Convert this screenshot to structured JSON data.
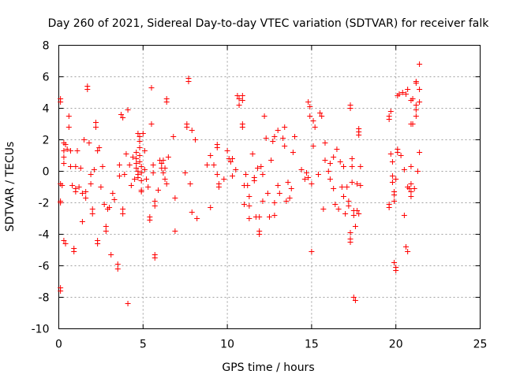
{
  "chart_data": {
    "type": "scatter",
    "title": "Day 260 of 2021, Sidereal Day-to-day VTEC variation (SDTVAR) for receiver falk",
    "xlabel": "GPS time / hours",
    "ylabel": "SDTVAR / TECUs",
    "xlim": [
      0,
      25
    ],
    "ylim": [
      -10,
      8
    ],
    "xticks": [
      0,
      5,
      10,
      15,
      20,
      25
    ],
    "yticks": [
      -10,
      -8,
      -6,
      -4,
      -2,
      0,
      2,
      4,
      6,
      8
    ],
    "grid": true,
    "marker": "+",
    "color": "#ff0000",
    "series": [
      {
        "name": "SDTVAR",
        "points": [
          [
            0.1,
            4.6
          ],
          [
            0.1,
            4.4
          ],
          [
            0.1,
            -7.4
          ],
          [
            0.1,
            -7.6
          ],
          [
            0.1,
            -0.8
          ],
          [
            0.1,
            -1.9
          ],
          [
            0.1,
            -2.0
          ],
          [
            0.2,
            -0.9
          ],
          [
            0.3,
            1.8
          ],
          [
            0.3,
            1.3
          ],
          [
            0.3,
            0.9
          ],
          [
            0.3,
            0.5
          ],
          [
            0.3,
            -4.4
          ],
          [
            0.4,
            -4.6
          ],
          [
            0.4,
            1.7
          ],
          [
            0.5,
            1.4
          ],
          [
            0.6,
            3.5
          ],
          [
            0.6,
            2.8
          ],
          [
            0.7,
            1.3
          ],
          [
            0.7,
            0.3
          ],
          [
            0.8,
            -0.9
          ],
          [
            0.9,
            -4.9
          ],
          [
            0.9,
            -5.1
          ],
          [
            1.0,
            -1.1
          ],
          [
            1.0,
            -1.3
          ],
          [
            1.0,
            0.3
          ],
          [
            1.1,
            1.3
          ],
          [
            1.2,
            -1.0
          ],
          [
            1.3,
            0.2
          ],
          [
            1.4,
            -3.2
          ],
          [
            1.4,
            -1.4
          ],
          [
            1.5,
            2.0
          ],
          [
            1.6,
            -1.3
          ],
          [
            1.6,
            -1.7
          ],
          [
            1.7,
            5.4
          ],
          [
            1.7,
            5.2
          ],
          [
            1.8,
            1.8
          ],
          [
            1.9,
            -0.2
          ],
          [
            1.9,
            -0.8
          ],
          [
            2.0,
            -2.4
          ],
          [
            2.0,
            -2.7
          ],
          [
            2.1,
            0.1
          ],
          [
            2.2,
            3.1
          ],
          [
            2.2,
            2.8
          ],
          [
            2.3,
            -4.4
          ],
          [
            2.3,
            -4.6
          ],
          [
            2.3,
            1.3
          ],
          [
            2.4,
            1.5
          ],
          [
            2.5,
            -1.0
          ],
          [
            2.6,
            0.3
          ],
          [
            2.7,
            -2.1
          ],
          [
            2.8,
            -3.5
          ],
          [
            2.8,
            -3.8
          ],
          [
            2.9,
            -2.4
          ],
          [
            3.0,
            -2.3
          ],
          [
            3.1,
            -5.3
          ],
          [
            3.2,
            -1.4
          ],
          [
            3.3,
            -1.8
          ],
          [
            3.5,
            -5.9
          ],
          [
            3.5,
            -6.2
          ],
          [
            3.6,
            -0.3
          ],
          [
            3.6,
            0.4
          ],
          [
            3.7,
            3.6
          ],
          [
            3.8,
            3.4
          ],
          [
            3.8,
            -2.4
          ],
          [
            3.8,
            -2.7
          ],
          [
            3.9,
            -0.2
          ],
          [
            4.0,
            1.1
          ],
          [
            4.1,
            -8.4
          ],
          [
            4.1,
            3.9
          ],
          [
            4.2,
            0.4
          ],
          [
            4.3,
            -0.9
          ],
          [
            4.4,
            0.9
          ],
          [
            4.5,
            -0.5
          ],
          [
            4.6,
            1.2
          ],
          [
            4.6,
            0.8
          ],
          [
            4.6,
            0.5
          ],
          [
            4.6,
            0.2
          ],
          [
            4.7,
            0.0
          ],
          [
            4.7,
            -0.2
          ],
          [
            4.7,
            -0.4
          ],
          [
            4.7,
            2.4
          ],
          [
            4.8,
            2.2
          ],
          [
            4.8,
            1.9
          ],
          [
            4.8,
            1.5
          ],
          [
            4.8,
            1.0
          ],
          [
            4.8,
            0.6
          ],
          [
            4.9,
            0.3
          ],
          [
            4.9,
            -0.1
          ],
          [
            4.9,
            -0.6
          ],
          [
            4.9,
            -1.2
          ],
          [
            4.9,
            -1.3
          ],
          [
            5.0,
            2.4
          ],
          [
            5.1,
            1.3
          ],
          [
            5.1,
            0.1
          ],
          [
            5.2,
            -0.5
          ],
          [
            5.3,
            -1.0
          ],
          [
            5.4,
            -2.9
          ],
          [
            5.4,
            -3.1
          ],
          [
            5.5,
            3.0
          ],
          [
            5.5,
            5.3
          ],
          [
            5.6,
            0.4
          ],
          [
            5.6,
            -0.1
          ],
          [
            5.7,
            -1.9
          ],
          [
            5.7,
            -2.2
          ],
          [
            5.7,
            -5.3
          ],
          [
            5.7,
            -5.5
          ],
          [
            5.9,
            -1.2
          ],
          [
            6.0,
            0.7
          ],
          [
            6.1,
            0.5
          ],
          [
            6.1,
            0.2
          ],
          [
            6.2,
            -0.1
          ],
          [
            6.2,
            0.7
          ],
          [
            6.3,
            0.2
          ],
          [
            6.3,
            -0.5
          ],
          [
            6.4,
            -0.8
          ],
          [
            6.4,
            4.6
          ],
          [
            6.4,
            4.4
          ],
          [
            6.5,
            0.9
          ],
          [
            6.8,
            2.2
          ],
          [
            6.9,
            -1.7
          ],
          [
            6.9,
            -3.8
          ],
          [
            7.5,
            -0.1
          ],
          [
            7.6,
            3.0
          ],
          [
            7.6,
            2.8
          ],
          [
            7.7,
            5.9
          ],
          [
            7.7,
            5.7
          ],
          [
            7.8,
            -0.8
          ],
          [
            7.9,
            2.6
          ],
          [
            7.9,
            -2.6
          ],
          [
            8.1,
            2.0
          ],
          [
            8.2,
            -3.0
          ],
          [
            8.8,
            0.4
          ],
          [
            9.0,
            -2.3
          ],
          [
            9.0,
            1.0
          ],
          [
            9.2,
            0.4
          ],
          [
            9.4,
            1.7
          ],
          [
            9.4,
            1.5
          ],
          [
            9.4,
            -0.2
          ],
          [
            9.5,
            -0.8
          ],
          [
            9.5,
            -1.0
          ],
          [
            9.8,
            -0.5
          ],
          [
            10.0,
            1.3
          ],
          [
            10.1,
            0.8
          ],
          [
            10.2,
            0.6
          ],
          [
            10.3,
            0.8
          ],
          [
            10.3,
            -0.3
          ],
          [
            10.5,
            0.1
          ],
          [
            10.6,
            4.8
          ],
          [
            10.7,
            4.6
          ],
          [
            10.7,
            4.2
          ],
          [
            10.9,
            4.8
          ],
          [
            10.9,
            4.5
          ],
          [
            10.9,
            3.0
          ],
          [
            10.9,
            2.8
          ],
          [
            11.0,
            -0.9
          ],
          [
            11.0,
            -2.1
          ],
          [
            11.1,
            -0.2
          ],
          [
            11.2,
            -0.9
          ],
          [
            11.3,
            -1.6
          ],
          [
            11.3,
            -2.2
          ],
          [
            11.3,
            -3.0
          ],
          [
            11.5,
            1.1
          ],
          [
            11.6,
            -0.4
          ],
          [
            11.6,
            -0.6
          ],
          [
            11.7,
            -2.9
          ],
          [
            11.8,
            0.2
          ],
          [
            11.9,
            -3.8
          ],
          [
            11.9,
            -4.0
          ],
          [
            11.9,
            -2.9
          ],
          [
            12.0,
            0.3
          ],
          [
            12.1,
            -0.2
          ],
          [
            12.1,
            -1.9
          ],
          [
            12.2,
            3.5
          ],
          [
            12.3,
            2.1
          ],
          [
            12.4,
            -1.4
          ],
          [
            12.5,
            -2.9
          ],
          [
            12.6,
            0.7
          ],
          [
            12.7,
            1.9
          ],
          [
            12.8,
            2.2
          ],
          [
            12.8,
            -2.0
          ],
          [
            12.8,
            -2.8
          ],
          [
            13.0,
            2.6
          ],
          [
            13.0,
            -0.9
          ],
          [
            13.1,
            -1.4
          ],
          [
            13.3,
            2.1
          ],
          [
            13.4,
            2.8
          ],
          [
            13.4,
            1.6
          ],
          [
            13.5,
            -1.9
          ],
          [
            13.6,
            -0.7
          ],
          [
            13.7,
            -1.7
          ],
          [
            13.8,
            -1.1
          ],
          [
            13.9,
            1.2
          ],
          [
            14.0,
            2.2
          ],
          [
            14.4,
            0.1
          ],
          [
            14.6,
            -0.5
          ],
          [
            14.7,
            -0.1
          ],
          [
            14.8,
            -0.4
          ],
          [
            14.8,
            4.4
          ],
          [
            14.9,
            4.1
          ],
          [
            14.9,
            3.5
          ],
          [
            15.0,
            -5.1
          ],
          [
            15.0,
            -0.8
          ],
          [
            15.1,
            3.2
          ],
          [
            15.1,
            1.6
          ],
          [
            15.2,
            2.8
          ],
          [
            15.4,
            -0.2
          ],
          [
            15.5,
            3.7
          ],
          [
            15.6,
            3.5
          ],
          [
            15.7,
            -2.4
          ],
          [
            15.8,
            1.8
          ],
          [
            15.8,
            0.7
          ],
          [
            16.0,
            0.0
          ],
          [
            16.1,
            0.5
          ],
          [
            16.1,
            -0.5
          ],
          [
            16.3,
            -1.1
          ],
          [
            16.3,
            0.9
          ],
          [
            16.4,
            -2.1
          ],
          [
            16.5,
            1.4
          ],
          [
            16.6,
            -2.4
          ],
          [
            16.7,
            0.6
          ],
          [
            16.8,
            -1.0
          ],
          [
            16.9,
            0.3
          ],
          [
            16.9,
            -1.6
          ],
          [
            17.0,
            -2.7
          ],
          [
            17.1,
            -1.0
          ],
          [
            17.2,
            -1.9
          ],
          [
            17.2,
            -2.2
          ],
          [
            17.3,
            -4.3
          ],
          [
            17.3,
            -4.5
          ],
          [
            17.3,
            -3.9
          ],
          [
            17.3,
            4.2
          ],
          [
            17.3,
            4.0
          ],
          [
            17.4,
            0.8
          ],
          [
            17.4,
            -0.7
          ],
          [
            17.4,
            0.3
          ],
          [
            17.5,
            -2.5
          ],
          [
            17.5,
            -2.8
          ],
          [
            17.5,
            -8.0
          ],
          [
            17.6,
            -8.2
          ],
          [
            17.6,
            -3.5
          ],
          [
            17.7,
            -0.8
          ],
          [
            17.7,
            -2.5
          ],
          [
            17.8,
            2.7
          ],
          [
            17.8,
            2.5
          ],
          [
            17.8,
            2.3
          ],
          [
            17.8,
            -2.7
          ],
          [
            17.9,
            0.3
          ],
          [
            17.9,
            -0.9
          ],
          [
            19.6,
            3.5
          ],
          [
            19.6,
            3.3
          ],
          [
            19.6,
            -2.1
          ],
          [
            19.6,
            -2.3
          ],
          [
            19.7,
            3.8
          ],
          [
            19.7,
            1.1
          ],
          [
            19.8,
            -0.3
          ],
          [
            19.8,
            -0.7
          ],
          [
            19.8,
            0.6
          ],
          [
            19.9,
            -1.3
          ],
          [
            19.9,
            -1.5
          ],
          [
            19.9,
            -1.9
          ],
          [
            19.9,
            -5.8
          ],
          [
            20.0,
            -6.1
          ],
          [
            20.0,
            -6.3
          ],
          [
            20.0,
            -0.5
          ],
          [
            20.1,
            1.2
          ],
          [
            20.1,
            1.4
          ],
          [
            20.1,
            4.8
          ],
          [
            20.2,
            4.9
          ],
          [
            20.3,
            1.0
          ],
          [
            20.4,
            5.0
          ],
          [
            20.5,
            -2.8
          ],
          [
            20.5,
            0.1
          ],
          [
            20.6,
            4.9
          ],
          [
            20.6,
            -4.8
          ],
          [
            20.7,
            -5.1
          ],
          [
            20.7,
            5.2
          ],
          [
            20.7,
            -1.0
          ],
          [
            20.8,
            -1.1
          ],
          [
            20.9,
            -0.8
          ],
          [
            20.9,
            -1.3
          ],
          [
            20.9,
            -1.6
          ],
          [
            20.9,
            0.3
          ],
          [
            20.9,
            3.0
          ],
          [
            20.9,
            4.5
          ],
          [
            21.0,
            4.6
          ],
          [
            21.0,
            3.0
          ],
          [
            21.1,
            -1.1
          ],
          [
            21.2,
            5.7
          ],
          [
            21.2,
            5.6
          ],
          [
            21.2,
            3.9
          ],
          [
            21.2,
            3.5
          ],
          [
            21.2,
            4.2
          ],
          [
            21.3,
            0.0
          ],
          [
            21.4,
            4.4
          ],
          [
            21.4,
            1.2
          ],
          [
            21.4,
            6.8
          ],
          [
            21.4,
            5.2
          ]
        ]
      }
    ]
  }
}
